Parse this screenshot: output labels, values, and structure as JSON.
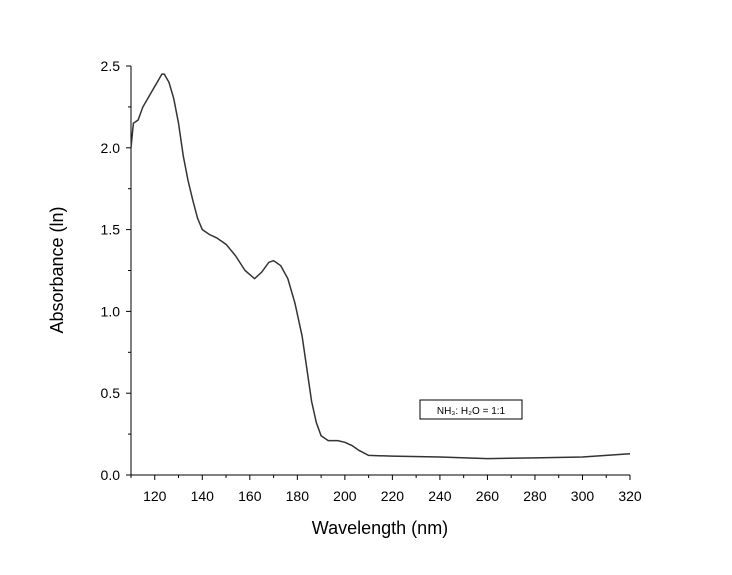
{
  "chart_data": {
    "type": "line",
    "x_label": "Wavelength (nm)",
    "y_label": "Absorbance (ln)",
    "legend": "center right",
    "series": [
      {
        "name": "NH₃: H₂O = 1:1",
        "color": "#333333",
        "x": [
          110,
          111,
          113,
          115,
          117,
          119,
          121,
          123,
          124,
          126,
          128,
          130,
          132,
          134,
          136,
          138,
          140,
          143,
          146,
          150,
          154,
          158,
          162,
          165,
          168,
          170,
          173,
          176,
          179,
          182,
          184,
          186,
          188,
          190,
          193,
          197,
          200,
          203,
          206,
          210,
          220,
          240,
          260,
          280,
          300,
          320
        ],
        "values": [
          2.0,
          2.15,
          2.17,
          2.25,
          2.3,
          2.35,
          2.4,
          2.45,
          2.45,
          2.4,
          2.3,
          2.15,
          1.95,
          1.8,
          1.68,
          1.57,
          1.5,
          1.47,
          1.45,
          1.41,
          1.34,
          1.25,
          1.2,
          1.24,
          1.3,
          1.31,
          1.28,
          1.2,
          1.05,
          0.85,
          0.65,
          0.45,
          0.32,
          0.24,
          0.21,
          0.21,
          0.2,
          0.18,
          0.15,
          0.12,
          0.115,
          0.11,
          0.1,
          0.105,
          0.11,
          0.13
        ]
      }
    ],
    "xlim": [
      110,
      320
    ],
    "xticks": [
      120,
      140,
      160,
      180,
      200,
      220,
      240,
      260,
      280,
      300,
      320
    ],
    "ylim": [
      0,
      2.5
    ],
    "yticks": [
      {
        "value": 0,
        "label": "0.0"
      },
      {
        "value": 0.5,
        "label": "0.5"
      },
      {
        "value": 1,
        "label": "1.0"
      },
      {
        "value": 1.5,
        "label": "1.5"
      },
      {
        "value": 2,
        "label": "2.0"
      },
      {
        "value": 2.5,
        "label": "2.5"
      }
    ]
  }
}
